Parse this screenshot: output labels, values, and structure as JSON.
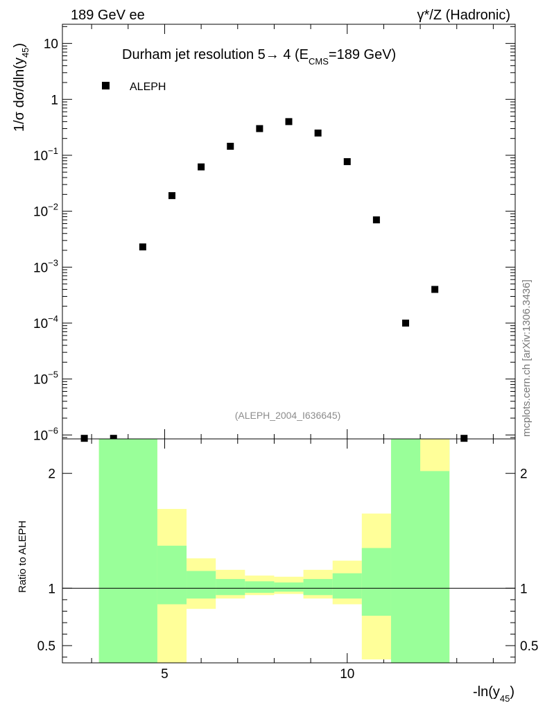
{
  "header": {
    "left_label": "189 GeV ee",
    "right_label": "γ*/Z (Hadronic)"
  },
  "side_label": "mcplots.cern.ch [arXiv:1306.3436]",
  "watermark": "(ALEPH_2004_I636645)",
  "colors": {
    "band_outer": "#ffff99",
    "band_inner": "#99ff99",
    "marker": "#000000",
    "watermark": "#8c8c8c"
  },
  "chart_data": [
    {
      "type": "scatter",
      "title_main": "Durham jet resolution 5→ 4 (E",
      "title_sub": "CMS",
      "title_tail": "=189 GeV)",
      "ylabel_pre": "1/σ dσ/dln(y",
      "ylabel_sub": "45",
      "ylabel_post": ")",
      "yscale": "log",
      "ylim": [
        8.5e-07,
        22
      ],
      "xlim": [
        2.2,
        14.6
      ],
      "legend": [
        {
          "name": "ALEPH",
          "marker": "square",
          "placement": "top-left"
        }
      ],
      "y_tick_labels": [
        {
          "v": 10,
          "base": "10",
          "exp": ""
        },
        {
          "v": 1,
          "base": "1",
          "exp": ""
        },
        {
          "v": 0.1,
          "base": "10",
          "exp": "−1"
        },
        {
          "v": 0.01,
          "base": "10",
          "exp": "−2"
        },
        {
          "v": 0.001,
          "base": "10",
          "exp": "−3"
        },
        {
          "v": 0.0001,
          "base": "10",
          "exp": "−4"
        },
        {
          "v": 1e-05,
          "base": "10",
          "exp": "−5"
        },
        {
          "v": 1e-06,
          "base": "10",
          "exp": "−6"
        }
      ],
      "series": [
        {
          "name": "ALEPH",
          "x": [
            2.8,
            3.6,
            4.4,
            5.2,
            6.0,
            6.8,
            7.6,
            8.4,
            9.2,
            10.0,
            10.8,
            11.6,
            12.4,
            13.2
          ],
          "y": [
            8.7e-07,
            8.7e-07,
            0.0023,
            0.019,
            0.062,
            0.145,
            0.3,
            0.4,
            0.25,
            0.077,
            0.007,
            0.0001,
            0.0004,
            8.7e-07
          ]
        }
      ]
    },
    {
      "type": "bar",
      "ylabel": "Ratio to ALEPH",
      "xlabel_pre": "-ln(y",
      "xlabel_sub": "45",
      "xlabel_post": ")",
      "xlim": [
        2.2,
        14.6
      ],
      "ylim": [
        0.35,
        2.3
      ],
      "x_ticks": [
        5,
        10
      ],
      "y_ticks": [
        0.5,
        1,
        2
      ],
      "x_tick_labels": [
        "5",
        "10"
      ],
      "y_tick_labels": [
        "0.5",
        "1",
        "2"
      ],
      "reference_line": 1,
      "bins": {
        "edges": [
          3.2,
          4.8,
          5.6,
          6.4,
          7.2,
          8.0,
          8.8,
          9.6,
          10.4,
          11.2,
          12.8
        ],
        "outer_low": [
          0.35,
          0.35,
          0.82,
          0.91,
          0.94,
          0.95,
          0.91,
          0.86,
          0.38,
          0.35
        ],
        "outer_high": [
          2.3,
          1.69,
          1.26,
          1.16,
          1.11,
          1.1,
          1.16,
          1.24,
          1.65,
          2.3
        ],
        "inner_low": [
          0.35,
          0.86,
          0.91,
          0.94,
          0.96,
          0.97,
          0.94,
          0.91,
          0.76,
          0.35
        ],
        "inner_high": [
          2.3,
          1.37,
          1.15,
          1.08,
          1.06,
          1.05,
          1.08,
          1.13,
          1.35,
          2.3
        ],
        "inner_high_last": 2.02
      }
    }
  ]
}
